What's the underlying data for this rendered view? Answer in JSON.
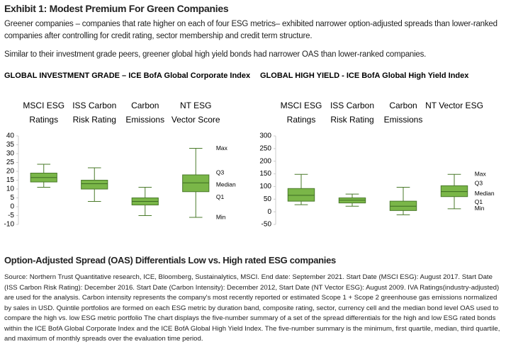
{
  "title": "Exhibit 1: Modest Premium For Green Companies",
  "paragraphs": [
    "Greener companies – companies that rate higher on each of four ESG metrics– exhibited narrower option-adjusted spreads than lower-ranked companies after controlling for credit rating, sector membership and credit term structure.",
    "Similar to their investment grade peers, greener global high yield bonds had narrower OAS than lower-ranked companies."
  ],
  "chart_data": [
    {
      "type": "box",
      "title": "GLOBAL INVESTMENT GRADE – ICE BofA Global Corporate Index",
      "categories": [
        [
          "MSCI ESG",
          "Ratings"
        ],
        [
          "ISS Carbon",
          "Risk Rating"
        ],
        [
          "Carbon",
          "Emissions"
        ],
        [
          "NT ESG",
          "Vector Score"
        ]
      ],
      "values": [
        [
          11,
          14,
          16.5,
          19,
          24
        ],
        [
          3,
          10,
          13,
          15,
          22
        ],
        [
          -5,
          1,
          3,
          5,
          11
        ],
        [
          -6,
          8.5,
          13.5,
          18,
          33
        ]
      ],
      "color": "#7ab648",
      "ylim": [
        -10,
        40
      ],
      "yticks": [
        -10,
        -5,
        0,
        5,
        10,
        15,
        20,
        25,
        30,
        35,
        40
      ],
      "annotations": [
        "Max",
        "Q3",
        "Median",
        "Q1",
        "Min"
      ]
    },
    {
      "type": "box",
      "title": "GLOBAL HIGH YIELD - ICE BofA Global High Yield Index",
      "categories": [
        [
          "MSCI ESG",
          "Ratings"
        ],
        [
          "ISS Carbon",
          "Risk Rating"
        ],
        [
          "Carbon",
          "Emissions"
        ],
        [
          "NT Vector ESG"
        ]
      ],
      "values": [
        [
          28,
          42,
          65,
          92,
          148
        ],
        [
          22,
          35,
          46,
          55,
          70
        ],
        [
          -12,
          5,
          22,
          42,
          97
        ],
        [
          12,
          60,
          80,
          103,
          148
        ]
      ],
      "color": "#7ab648",
      "ylim": [
        -50,
        300
      ],
      "yticks": [
        -50,
        0,
        50,
        100,
        150,
        200,
        250,
        300
      ],
      "annotations": [
        "Max",
        "Q3",
        "Median",
        "Q1",
        "Min"
      ]
    }
  ],
  "footer_title": "Option-Adjusted Spread (OAS) Differentials Low vs. High rated ESG companies",
  "source": "Source: Northern Trust Quantitative research, ICE, Bloomberg, Sustainalytics, MSCI. End date: September 2021. Start Date (MSCI ESG): August 2017. Start Date (ISS Carbon Risk Rating): December 2016. Start Date (Carbon Intensity): December 2012, Start Date (NT Vector ESG): August 2009. IVA Ratings(industry-adjusted) are used for the analysis. Carbon intensity represents the company's most recently reported or estimated Scope 1 + Scope 2 greenhouse gas emissions normalized by sales in USD. Quintile portfolios are formed on each ESG metric by duration band, composite rating, sector, currency cell and the median bond level OAS used to compare the high vs. low ESG metric portfolio The chart displays the five-number summary of a set of the spread differentials for the high and low ESG rated bonds within the ICE BofA Global Corporate Index and the ICE BofA Global High Yield Index. The five-number summary is the minimum, first quartile, median, third quartile, and maximum of monthly spreads over the evaluation time period."
}
